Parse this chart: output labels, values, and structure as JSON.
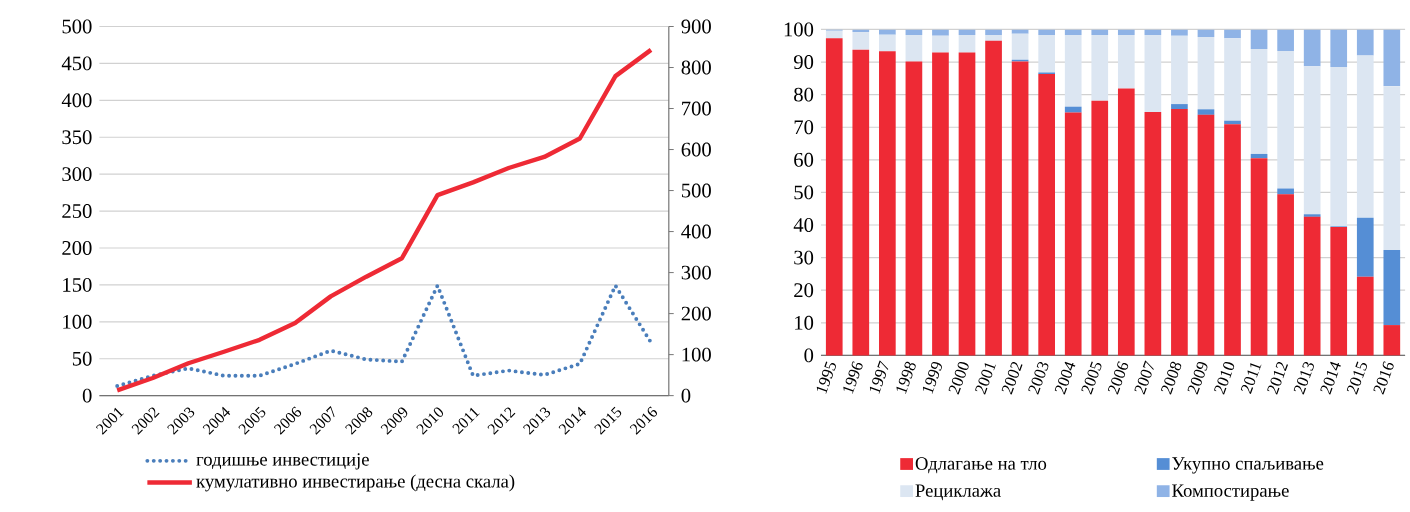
{
  "chart_data": [
    {
      "type": "line",
      "categories": [
        "2001",
        "2002",
        "2003",
        "2004",
        "2005",
        "2006",
        "2007",
        "2008",
        "2009",
        "2010",
        "2011",
        "2012",
        "2013",
        "2014",
        "2015",
        "2016"
      ],
      "series": [
        {
          "name": "годишње инвестиције",
          "color": "#4a7ebb",
          "line_style": "dotted",
          "values": [
            13,
            27,
            37,
            27,
            27,
            43,
            61,
            49,
            46,
            149,
            27,
            34,
            28,
            43,
            149,
            72
          ]
        },
        {
          "name": "кумулативно инвестирање (десна скала)",
          "color": "#ee2a35",
          "line_style": "solid",
          "axis": "y2",
          "values": [
            13,
            43,
            79,
            107,
            136,
            177,
            242,
            290,
            335,
            489,
            520,
            555,
            582,
            627,
            779,
            843
          ]
        }
      ],
      "ylim": [
        0,
        500
      ],
      "yticks": [
        0,
        50,
        100,
        150,
        200,
        250,
        300,
        350,
        400,
        450,
        500
      ],
      "y2lim": [
        0,
        900
      ],
      "y2ticks": [
        0,
        100,
        200,
        300,
        400,
        500,
        600,
        700,
        800,
        900
      ],
      "grid": "y",
      "legend": "bottom"
    },
    {
      "type": "bar",
      "stacked": true,
      "categories": [
        "1995",
        "1996",
        "1997",
        "1998",
        "1999",
        "2000",
        "2001",
        "2002",
        "2003",
        "2004",
        "2005",
        "2006",
        "2007",
        "2008",
        "2009",
        "2010",
        "2011",
        "2012",
        "2013",
        "2014",
        "2015",
        "2016"
      ],
      "series": [
        {
          "name": "Одлагање на тло",
          "color": "#ee2a35",
          "values": [
            97.3,
            93.8,
            93.3,
            90.2,
            92.9,
            92.9,
            96.5,
            90.2,
            86.3,
            74.5,
            78.1,
            81.9,
            74.7,
            75.6,
            73.8,
            70.9,
            60.5,
            49.4,
            42.5,
            39.4,
            24.1,
            9.3
          ]
        },
        {
          "name": "Укупно спаљивање",
          "color": "#558ed5",
          "values": [
            0,
            0,
            0,
            0,
            0,
            0,
            0,
            0.5,
            0.5,
            1.8,
            0,
            0,
            0,
            1.5,
            1.7,
            1.1,
            1.3,
            1.8,
            0.8,
            0.2,
            18.1,
            23.0
          ]
        },
        {
          "name": "Рециклажа",
          "color": "#dce6f2",
          "values": [
            2.3,
            5.4,
            5.1,
            8.1,
            5.2,
            5.4,
            1.8,
            8.0,
            11.5,
            22.0,
            20.2,
            16.4,
            23.6,
            21.0,
            22.2,
            25.3,
            32.2,
            42.2,
            45.4,
            48.9,
            49.8,
            50.3
          ]
        },
        {
          "name": "Компостирање",
          "color": "#8fb3e6",
          "values": [
            0.4,
            0.8,
            1.6,
            1.7,
            1.9,
            1.7,
            1.7,
            1.3,
            1.7,
            1.7,
            1.7,
            1.7,
            1.7,
            1.9,
            2.3,
            2.7,
            6.0,
            6.6,
            11.3,
            11.5,
            8.0,
            17.4
          ]
        }
      ],
      "ylim": [
        0,
        100
      ],
      "yticks": [
        0,
        10,
        20,
        30,
        40,
        50,
        60,
        70,
        80,
        90,
        100
      ],
      "grid": "y",
      "legend": "bottom"
    }
  ]
}
